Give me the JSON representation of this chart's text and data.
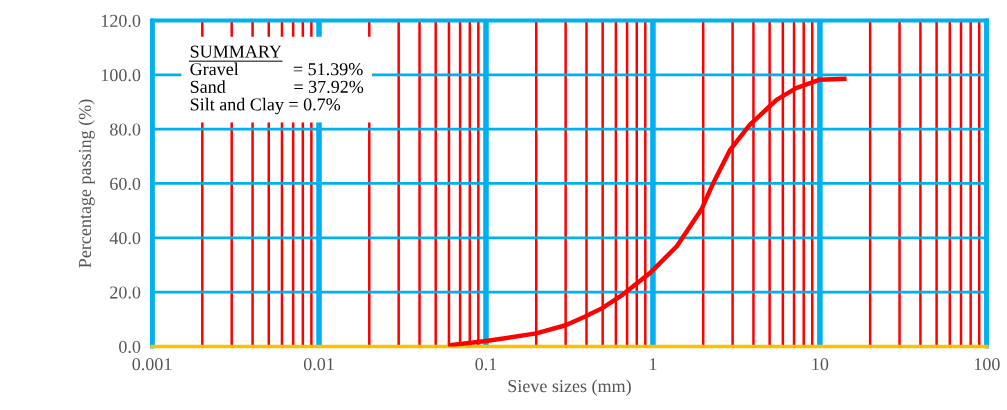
{
  "chart_data": {
    "type": "line",
    "xlabel": "Sieve sizes (mm)",
    "ylabel": "Percentage passing (%)",
    "log": "x",
    "grid": true,
    "marker": "none",
    "line_style": "solid",
    "xlim": [
      0.001,
      100
    ],
    "xticks": [
      0.001,
      {
        "value": 0.002,
        "label": null
      },
      {
        "value": 0.003,
        "label": null
      },
      {
        "value": 0.004,
        "label": null
      },
      {
        "value": 0.005,
        "label": null
      },
      {
        "value": 0.006,
        "label": null
      },
      {
        "value": 0.007,
        "label": null
      },
      {
        "value": 0.008,
        "label": null
      },
      {
        "value": 0.009,
        "label": null
      },
      0.01,
      {
        "value": 0.02,
        "label": null
      },
      {
        "value": 0.03,
        "label": null
      },
      {
        "value": 0.04,
        "label": null
      },
      {
        "value": 0.05,
        "label": null
      },
      {
        "value": 0.06,
        "label": null
      },
      {
        "value": 0.07,
        "label": null
      },
      {
        "value": 0.08,
        "label": null
      },
      {
        "value": 0.09,
        "label": null
      },
      0.1,
      {
        "value": 0.2,
        "label": null
      },
      {
        "value": 0.3,
        "label": null
      },
      {
        "value": 0.4,
        "label": null
      },
      {
        "value": 0.5,
        "label": null
      },
      {
        "value": 0.6,
        "label": null
      },
      {
        "value": 0.7,
        "label": null
      },
      {
        "value": 0.8,
        "label": null
      },
      {
        "value": 0.9,
        "label": null
      },
      1,
      {
        "value": 2,
        "label": null
      },
      {
        "value": 3,
        "label": null
      },
      {
        "value": 4,
        "label": null
      },
      {
        "value": 5,
        "label": null
      },
      {
        "value": 6,
        "label": null
      },
      {
        "value": 7,
        "label": null
      },
      {
        "value": 8,
        "label": null
      },
      {
        "value": 9,
        "label": null
      },
      10,
      {
        "value": 20,
        "label": null
      },
      {
        "value": 30,
        "label": null
      },
      {
        "value": 40,
        "label": null
      },
      {
        "value": 50,
        "label": null
      },
      {
        "value": 60,
        "label": null
      },
      {
        "value": 70,
        "label": null
      },
      {
        "value": 80,
        "label": null
      },
      {
        "value": 90,
        "label": null
      },
      100
    ],
    "ylim": [
      0,
      120
    ],
    "yticks": [
      {
        "value": 0,
        "label": "0.0"
      },
      {
        "value": 20,
        "label": "20.0"
      },
      {
        "value": 40,
        "label": "40.0"
      },
      {
        "value": 60,
        "label": "60.0"
      },
      {
        "value": 80,
        "label": "80.0"
      },
      {
        "value": 100,
        "label": "100.0"
      },
      {
        "value": 120,
        "label": "120.0"
      }
    ],
    "series": [
      {
        "color": "#ff0000",
        "x": [
          0.061,
          0.1,
          0.2,
          0.3,
          0.39,
          0.5,
          0.66,
          0.96,
          1.39,
          1.95,
          2.3,
          2.9,
          3.8,
          5.5,
          7.2,
          10,
          14
        ],
        "values": [
          0.5,
          2,
          4.8,
          7.8,
          10.9,
          14.2,
          19.1,
          27,
          36.9,
          50.4,
          60.2,
          72.4,
          81.6,
          90.8,
          95.1,
          98.2,
          98.5
        ]
      }
    ],
    "annotations": [
      "SUMMARY",
      "Gravel            = 51.39%",
      "Sand               = 37.92%",
      "Silt and Clay = 0.7%"
    ]
  }
}
